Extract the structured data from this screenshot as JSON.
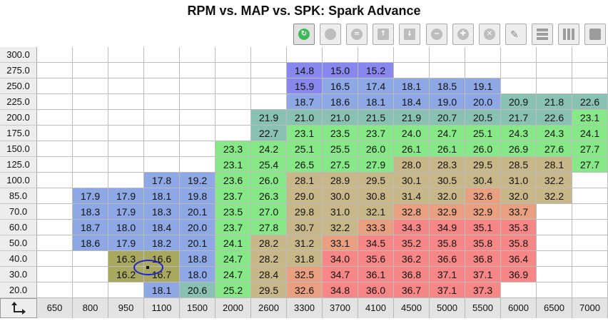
{
  "title": "RPM vs. MAP vs. SPK: Spark Advance",
  "toolbar": [
    {
      "name": "refresh-icon",
      "glyph": "↻",
      "color": "#3dbb5a",
      "kind": "circle"
    },
    {
      "name": "record-icon",
      "glyph": "",
      "color": "#bdbdbd",
      "kind": "circle"
    },
    {
      "name": "equals-icon",
      "glyph": "=",
      "color": "#bdbdbd",
      "kind": "circle"
    },
    {
      "name": "arrow-up-icon",
      "glyph": "↑",
      "color": "#bdbdbd",
      "kind": "square"
    },
    {
      "name": "arrow-down-icon",
      "glyph": "↓",
      "color": "#bdbdbd",
      "kind": "square"
    },
    {
      "name": "minus-icon",
      "glyph": "−",
      "color": "#bdbdbd",
      "kind": "circle"
    },
    {
      "name": "plus-icon",
      "glyph": "✚",
      "color": "#bdbdbd",
      "kind": "circle"
    },
    {
      "name": "close-icon",
      "glyph": "✕",
      "color": "#bdbdbd",
      "kind": "circle"
    },
    {
      "name": "pencil-icon",
      "glyph": "✎",
      "color": "#888888",
      "kind": "pencil"
    },
    {
      "name": "rows-icon",
      "glyph": "",
      "color": "#9c9c9c",
      "kind": "hbars"
    },
    {
      "name": "columns-icon",
      "glyph": "",
      "color": "#9c9c9c",
      "kind": "vbars"
    },
    {
      "name": "table-icon",
      "glyph": "",
      "color": "#9c9c9c",
      "kind": "solid"
    }
  ],
  "rpm_axis": [
    "650",
    "800",
    "950",
    "1100",
    "1500",
    "2000",
    "2600",
    "3300",
    "3700",
    "4100",
    "4500",
    "5000",
    "5500",
    "6000",
    "6500",
    "7000"
  ],
  "map_axis": [
    "300.0",
    "275.0",
    "250.0",
    "225.0",
    "200.0",
    "175.0",
    "150.0",
    "125.0",
    "100.0",
    "85.0",
    "70.0",
    "60.0",
    "50.0",
    "40.0",
    "30.0",
    "20.0"
  ],
  "values": [
    [
      "",
      "",
      "",
      "",
      "",
      "",
      "",
      "",
      "",
      "",
      "",
      "",
      "",
      "",
      "",
      ""
    ],
    [
      "",
      "",
      "",
      "",
      "",
      "",
      "",
      "14.8",
      "15.0",
      "15.2",
      "",
      "",
      "",
      "",
      "",
      ""
    ],
    [
      "",
      "",
      "",
      "",
      "",
      "",
      "",
      "15.9",
      "16.5",
      "17.4",
      "18.1",
      "18.5",
      "19.1",
      "",
      "",
      ""
    ],
    [
      "",
      "",
      "",
      "",
      "",
      "",
      "",
      "18.7",
      "18.6",
      "18.1",
      "18.4",
      "19.0",
      "20.0",
      "20.9",
      "21.8",
      "22.6"
    ],
    [
      "",
      "",
      "",
      "",
      "",
      "",
      "21.9",
      "21.0",
      "21.0",
      "21.5",
      "21.9",
      "20.7",
      "20.5",
      "21.7",
      "22.6",
      "23.1"
    ],
    [
      "",
      "",
      "",
      "",
      "",
      "",
      "22.7",
      "23.1",
      "23.5",
      "23.7",
      "24.0",
      "24.7",
      "25.1",
      "24.3",
      "24.3",
      "24.1"
    ],
    [
      "",
      "",
      "",
      "",
      "",
      "23.3",
      "24.2",
      "25.1",
      "25.5",
      "26.0",
      "26.1",
      "26.1",
      "26.0",
      "26.9",
      "27.6",
      "27.7"
    ],
    [
      "",
      "",
      "",
      "",
      "",
      "23.1",
      "25.4",
      "26.5",
      "27.5",
      "27.9",
      "28.0",
      "28.3",
      "29.5",
      "28.5",
      "28.1",
      "27.7"
    ],
    [
      "",
      "",
      "",
      "17.8",
      "19.2",
      "23.6",
      "26.0",
      "28.1",
      "28.9",
      "29.5",
      "30.1",
      "30.5",
      "30.4",
      "31.0",
      "32.2",
      ""
    ],
    [
      "",
      "17.9",
      "17.9",
      "18.1",
      "19.8",
      "23.7",
      "26.3",
      "29.0",
      "30.0",
      "30.8",
      "31.4",
      "32.0",
      "32.6",
      "32.0",
      "32.2",
      ""
    ],
    [
      "",
      "18.3",
      "17.9",
      "18.3",
      "20.1",
      "23.5",
      "27.0",
      "29.8",
      "31.0",
      "32.1",
      "32.8",
      "32.9",
      "32.9",
      "33.7",
      "",
      ""
    ],
    [
      "",
      "18.7",
      "18.0",
      "18.4",
      "20.0",
      "23.7",
      "27.8",
      "30.7",
      "32.2",
      "33.3",
      "34.3",
      "34.9",
      "35.1",
      "35.3",
      "",
      ""
    ],
    [
      "",
      "18.6",
      "17.9",
      "18.2",
      "20.1",
      "24.1",
      "28.2",
      "31.2",
      "33.1",
      "34.5",
      "35.2",
      "35.8",
      "35.8",
      "35.8",
      "",
      ""
    ],
    [
      "",
      "",
      "16.3",
      "16.6",
      "18.8",
      "24.7",
      "28.2",
      "31.8",
      "34.0",
      "35.6",
      "36.2",
      "36.6",
      "36.8",
      "36.4",
      "",
      ""
    ],
    [
      "",
      "",
      "16.2",
      "16.7",
      "18.0",
      "24.7",
      "28.4",
      "32.5",
      "34.7",
      "36.1",
      "36.8",
      "37.1",
      "37.1",
      "36.9",
      "",
      ""
    ],
    [
      "",
      "",
      "",
      "18.1",
      "20.6",
      "25.2",
      "29.5",
      "32.6",
      "34.8",
      "36.0",
      "36.7",
      "37.1",
      "37.3",
      "",
      "",
      ""
    ]
  ],
  "highlight": {
    "row": 13,
    "col": 2,
    "rows": 2,
    "cols": 2,
    "color": "#a8a85e"
  },
  "colors": {
    "very_low": "#8787ee",
    "low": "#8ea8e6",
    "blue_green": "#89c2b3",
    "green": "#86e886",
    "tan": "#c8b788",
    "salmon": "#e8a080",
    "red": "#f78787",
    "empty": "#ffffff"
  }
}
